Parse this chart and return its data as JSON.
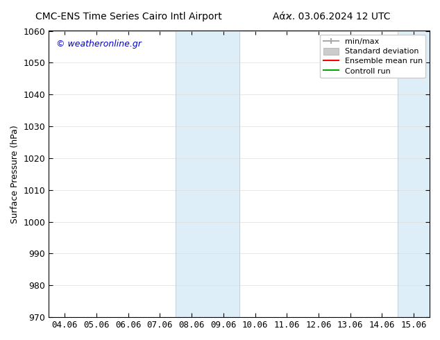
{
  "title_left": "CMC-ENS Time Series Cairo Intl Airport",
  "title_right": "Αάϰ. 03.06.2024 12 UTC",
  "ylabel": "Surface Pressure (hPa)",
  "ylim": [
    970,
    1060
  ],
  "yticks": [
    970,
    980,
    990,
    1000,
    1010,
    1020,
    1030,
    1040,
    1050,
    1060
  ],
  "xtick_labels": [
    "04.06",
    "05.06",
    "06.06",
    "07.06",
    "08.06",
    "09.06",
    "10.06",
    "11.06",
    "12.06",
    "13.06",
    "14.06",
    "15.06"
  ],
  "xtick_positions": [
    0,
    1,
    2,
    3,
    4,
    5,
    6,
    7,
    8,
    9,
    10,
    11
  ],
  "xlim": [
    -0.5,
    11.5
  ],
  "shaded_regions": [
    {
      "x_start": 3.5,
      "x_end": 4.5,
      "color": "#d6eaf8"
    },
    {
      "x_start": 4.5,
      "x_end": 5.5,
      "color": "#d6eaf8"
    },
    {
      "x_start": 10.5,
      "x_end": 11.0,
      "color": "#d6eaf8"
    },
    {
      "x_start": 11.0,
      "x_end": 11.5,
      "color": "#d6eaf8"
    }
  ],
  "watermark_text": "© weatheronline.gr",
  "watermark_color": "#0000cc",
  "legend_labels": [
    "min/max",
    "Standard deviation",
    "Ensemble mean run",
    "Controll run"
  ],
  "legend_colors": [
    "#aaaaaa",
    "#cccccc",
    "#ff0000",
    "#00aa00"
  ],
  "legend_line_styles": [
    "-",
    "-",
    "-",
    "-"
  ],
  "bg_color": "#ffffff",
  "plot_bg_color": "#ffffff",
  "tick_color": "#000000",
  "axis_color": "#000000",
  "font_size": 9,
  "title_font_size": 10
}
